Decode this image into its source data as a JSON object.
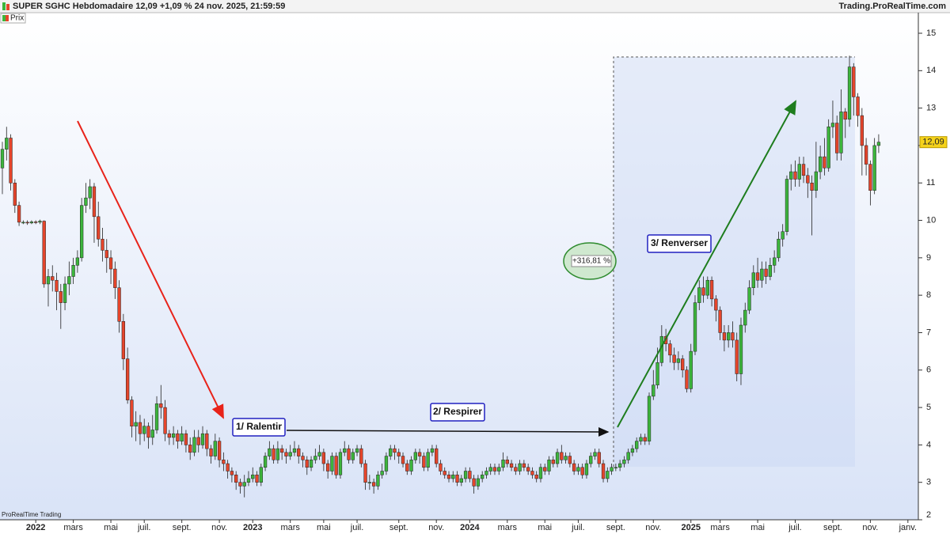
{
  "chart_data": {
    "type": "candlestick",
    "title": "SUPER SGHC Hebdomadaire 12,09 +1,09 % 24 nov. 2025, 21:59:59",
    "source": "Trading.ProRealTime.com",
    "footer": "ProRealTime Trading",
    "annotations": [
      "1/ Ralentir",
      "2/ Respirer",
      "3/ Renverser",
      "+316,81 %"
    ],
    "categories": [
      null,
      null,
      null,
      null,
      null,
      null,
      null,
      null,
      "2022",
      null,
      null,
      null,
      null,
      null,
      null,
      null,
      null,
      "mars",
      null,
      null,
      null,
      null,
      null,
      null,
      null,
      null,
      "mai",
      null,
      null,
      null,
      null,
      null,
      null,
      null,
      "juil.",
      null,
      null,
      null,
      null,
      null,
      null,
      null,
      null,
      "sept.",
      null,
      null,
      null,
      null,
      null,
      null,
      null,
      null,
      "nov.",
      null,
      null,
      null,
      null,
      null,
      null,
      null,
      "2023",
      null,
      null,
      null,
      null,
      null,
      null,
      null,
      null,
      "mars",
      null,
      null,
      null,
      null,
      null,
      null,
      null,
      "mai",
      null,
      null,
      null,
      null,
      null,
      null,
      null,
      "juil.",
      null,
      null,
      null,
      null,
      null,
      null,
      null,
      null,
      null,
      "sept.",
      null,
      null,
      null,
      null,
      null,
      null,
      null,
      null,
      "nov.",
      null,
      null,
      null,
      null,
      null,
      null,
      null,
      "2024",
      null,
      null,
      null,
      null,
      null,
      null,
      null,
      null,
      "mars",
      null,
      null,
      null,
      null,
      null,
      null,
      null,
      null,
      "mai",
      null,
      null,
      null,
      null,
      null,
      null,
      null,
      "juil.",
      null,
      null,
      null,
      null,
      null,
      null,
      null,
      null,
      "sept.",
      null,
      null,
      null,
      null,
      null,
      null,
      null,
      null,
      "nov.",
      null,
      null,
      null,
      null,
      null,
      null,
      null,
      null,
      "2025",
      null,
      null,
      null,
      null,
      null,
      null,
      "mars",
      null,
      null,
      null,
      null,
      null,
      null,
      null,
      null,
      "mai",
      null,
      null,
      null,
      null,
      null,
      null,
      null,
      null,
      "juil.",
      null,
      null,
      null,
      null,
      null,
      null,
      null,
      null,
      "sept.",
      null,
      null,
      null,
      null,
      null,
      null,
      null,
      null,
      "nov.",
      null,
      null,
      null,
      null,
      null,
      null,
      null,
      null,
      "janv.",
      null,
      null
    ],
    "series": [
      {
        "name": "Prix",
        "up_color": "#3cb53c",
        "down_color": "#e5452b",
        "open": [
          11.4,
          11.9,
          12.2,
          11.0,
          10.4,
          9.95,
          9.95,
          9.93,
          9.96,
          9.95,
          9.98,
          8.3,
          8.5,
          8.4,
          8.1,
          7.8,
          8.3,
          8.5,
          8.8,
          9.0,
          10.4,
          10.6,
          10.9,
          10.1,
          9.5,
          9.2,
          9.0,
          8.7,
          8.2,
          7.3,
          6.3,
          5.2,
          4.5,
          4.6,
          4.3,
          4.5,
          4.2,
          4.4,
          5.1,
          5.0,
          4.3,
          4.2,
          4.3,
          4.1,
          4.3,
          4.0,
          3.8,
          4.2,
          4.0,
          4.3,
          3.9,
          3.7,
          4.1,
          3.6,
          3.5,
          3.3,
          3.2,
          3.0,
          2.9,
          3.0,
          3.1,
          3.2,
          3.0,
          3.4,
          3.7,
          3.9,
          3.6,
          3.9,
          3.8,
          3.7,
          3.8,
          3.9,
          3.7,
          3.6,
          3.4,
          3.6,
          3.7,
          3.8,
          3.5,
          3.3,
          3.7,
          3.2,
          3.8,
          3.9,
          3.6,
          3.8,
          3.9,
          3.5,
          3.0,
          3.0,
          2.9,
          3.2,
          3.3,
          3.7,
          3.9,
          3.8,
          3.7,
          3.5,
          3.3,
          3.6,
          3.8,
          3.7,
          3.4,
          3.8,
          3.9,
          3.5,
          3.3,
          3.2,
          3.1,
          3.2,
          3.0,
          3.1,
          3.3,
          3.1,
          2.9,
          3.1,
          3.2,
          3.3,
          3.4,
          3.3,
          3.4,
          3.6,
          3.5,
          3.4,
          3.3,
          3.5,
          3.4,
          3.3,
          3.2,
          3.1,
          3.4,
          3.3,
          3.6,
          3.5,
          3.8,
          3.6,
          3.7,
          3.5,
          3.3,
          3.4,
          3.2,
          3.5,
          3.7,
          3.8,
          3.5,
          3.1,
          3.3,
          3.4,
          3.4,
          3.5,
          3.6,
          3.8,
          3.9,
          4.1,
          4.2,
          4.1,
          5.3,
          5.6,
          6.2,
          6.9,
          6.7,
          6.4,
          6.2,
          6.3,
          6.0,
          5.5,
          6.5,
          7.8,
          8.2,
          8.0,
          8.4,
          7.9,
          7.6,
          7.0,
          6.8,
          7.0,
          6.8,
          5.9,
          7.2,
          7.6,
          8.2,
          8.6,
          8.4,
          8.7,
          8.5,
          8.8,
          9.0,
          9.5,
          9.7,
          11.1,
          11.3,
          11.1,
          11.5,
          11.2,
          11.0,
          10.8,
          11.3,
          11.7,
          11.4,
          12.5,
          12.6,
          11.8,
          12.9,
          12.7,
          14.1,
          13.3,
          12.8,
          12.0,
          11.5,
          10.8,
          12.0,
          null,
          null,
          null,
          null,
          null,
          null,
          null,
          null,
          null
        ],
        "high": [
          12.1,
          12.5,
          12.3,
          11.1,
          10.5,
          10.0,
          10.0,
          10.0,
          10.0,
          10.02,
          10.0,
          8.7,
          8.8,
          8.6,
          8.3,
          8.5,
          8.9,
          9.0,
          9.2,
          10.6,
          11.0,
          11.1,
          11.0,
          10.5,
          9.8,
          9.5,
          9.2,
          8.9,
          8.4,
          7.5,
          6.6,
          5.3,
          4.9,
          4.8,
          4.7,
          4.6,
          4.8,
          5.3,
          5.6,
          5.2,
          4.4,
          4.5,
          4.4,
          4.5,
          4.4,
          4.2,
          4.4,
          4.4,
          4.5,
          4.4,
          4.0,
          4.3,
          4.2,
          3.8,
          3.6,
          3.4,
          3.3,
          3.1,
          3.2,
          3.3,
          3.4,
          3.3,
          3.5,
          3.8,
          4.1,
          4.0,
          4.1,
          4.0,
          3.9,
          4.0,
          4.1,
          4.0,
          3.8,
          3.7,
          3.7,
          3.9,
          4.0,
          3.9,
          3.6,
          3.8,
          3.8,
          3.9,
          4.1,
          4.0,
          3.9,
          4.0,
          4.0,
          3.6,
          3.2,
          3.1,
          3.3,
          3.5,
          3.8,
          4.0,
          4.0,
          3.9,
          3.8,
          3.6,
          3.7,
          3.9,
          3.9,
          3.8,
          3.9,
          4.0,
          4.0,
          3.6,
          3.4,
          3.3,
          3.3,
          3.3,
          3.2,
          3.4,
          3.4,
          3.2,
          3.2,
          3.3,
          3.4,
          3.5,
          3.5,
          3.5,
          3.8,
          3.7,
          3.6,
          3.5,
          3.6,
          3.6,
          3.5,
          3.4,
          3.3,
          3.5,
          3.5,
          3.7,
          3.7,
          3.9,
          4.0,
          3.8,
          3.8,
          3.6,
          3.5,
          3.5,
          3.6,
          3.8,
          3.9,
          3.9,
          3.6,
          3.4,
          3.5,
          3.5,
          3.6,
          3.7,
          3.9,
          4.0,
          4.2,
          4.3,
          4.3,
          5.4,
          6.0,
          6.6,
          7.2,
          7.1,
          6.8,
          6.6,
          6.5,
          6.4,
          6.1,
          6.7,
          8.0,
          8.4,
          8.5,
          8.5,
          8.5,
          8.0,
          7.7,
          7.2,
          7.2,
          7.3,
          7.0,
          7.4,
          7.8,
          8.4,
          8.8,
          9.0,
          8.9,
          8.9,
          9.0,
          9.2,
          9.7,
          9.9,
          11.2,
          11.5,
          11.6,
          11.7,
          11.7,
          11.4,
          11.2,
          12.1,
          12.0,
          12.2,
          12.7,
          13.2,
          12.8,
          13.5,
          13.0,
          14.4,
          14.2,
          13.4,
          13.0,
          12.2,
          11.6,
          12.2,
          12.3,
          null,
          null,
          null,
          null,
          null,
          null,
          null,
          null,
          null
        ],
        "low": [
          10.7,
          11.6,
          10.8,
          10.2,
          9.85,
          9.9,
          9.88,
          9.9,
          9.9,
          9.9,
          8.2,
          7.7,
          8.1,
          7.6,
          7.1,
          7.6,
          8.0,
          8.3,
          8.6,
          8.9,
          10.2,
          10.3,
          9.4,
          9.3,
          8.9,
          8.6,
          8.3,
          7.9,
          7.0,
          6.0,
          5.1,
          4.2,
          4.1,
          4.0,
          4.1,
          3.9,
          4.0,
          4.3,
          4.7,
          4.1,
          4.0,
          4.0,
          3.9,
          4.0,
          3.8,
          3.6,
          3.7,
          3.8,
          3.9,
          3.7,
          3.5,
          3.6,
          3.4,
          3.3,
          3.1,
          3.0,
          2.8,
          2.7,
          2.6,
          2.9,
          3.0,
          2.9,
          2.9,
          3.3,
          3.6,
          3.5,
          3.5,
          3.6,
          3.5,
          3.6,
          3.7,
          3.5,
          3.4,
          3.2,
          3.3,
          3.5,
          3.6,
          3.3,
          3.1,
          3.2,
          3.1,
          3.1,
          3.7,
          3.5,
          3.5,
          3.7,
          3.4,
          2.8,
          2.8,
          2.7,
          2.8,
          3.1,
          3.2,
          3.6,
          3.6,
          3.5,
          3.4,
          3.2,
          3.2,
          3.5,
          3.5,
          3.3,
          3.3,
          3.7,
          3.4,
          3.2,
          3.1,
          3.0,
          3.0,
          2.9,
          2.9,
          3.0,
          3.0,
          2.7,
          2.8,
          3.0,
          3.1,
          3.2,
          3.2,
          3.2,
          3.3,
          3.4,
          3.3,
          3.2,
          3.2,
          3.3,
          3.2,
          3.1,
          3.0,
          3.0,
          3.2,
          3.2,
          3.4,
          3.4,
          3.5,
          3.5,
          3.4,
          3.2,
          3.2,
          3.1,
          3.1,
          3.4,
          3.6,
          3.4,
          3.0,
          3.0,
          3.2,
          3.3,
          3.3,
          3.4,
          3.5,
          3.7,
          3.8,
          4.0,
          4.0,
          4.0,
          5.2,
          5.5,
          6.1,
          6.5,
          6.2,
          6.0,
          6.0,
          5.8,
          5.4,
          5.4,
          6.4,
          7.6,
          7.8,
          7.9,
          7.7,
          7.3,
          6.8,
          6.5,
          6.6,
          6.6,
          5.7,
          5.6,
          7.0,
          7.5,
          8.0,
          8.2,
          8.2,
          8.3,
          8.4,
          8.6,
          8.9,
          9.3,
          9.6,
          10.8,
          10.9,
          10.9,
          11.0,
          10.6,
          9.6,
          10.6,
          11.1,
          11.2,
          11.3,
          12.2,
          11.6,
          11.6,
          12.2,
          12.5,
          12.8,
          12.5,
          11.2,
          11.2,
          10.4,
          10.7,
          11.8,
          null,
          null,
          null,
          null,
          null,
          null,
          null,
          null,
          null
        ],
        "close": [
          11.9,
          12.2,
          11.0,
          10.4,
          9.95,
          9.95,
          9.93,
          9.96,
          9.95,
          9.98,
          8.3,
          8.5,
          8.4,
          8.1,
          7.8,
          8.3,
          8.5,
          8.8,
          9.0,
          10.4,
          10.6,
          10.9,
          10.1,
          9.5,
          9.2,
          9.0,
          8.7,
          8.2,
          7.3,
          6.3,
          5.2,
          4.5,
          4.6,
          4.3,
          4.5,
          4.2,
          4.4,
          5.1,
          5.0,
          4.3,
          4.2,
          4.3,
          4.1,
          4.3,
          4.0,
          3.8,
          4.2,
          4.0,
          4.3,
          3.9,
          3.7,
          4.1,
          3.6,
          3.5,
          3.3,
          3.2,
          3.0,
          2.9,
          3.0,
          3.1,
          3.2,
          3.0,
          3.4,
          3.7,
          3.9,
          3.6,
          3.9,
          3.8,
          3.7,
          3.8,
          3.9,
          3.7,
          3.6,
          3.4,
          3.6,
          3.7,
          3.8,
          3.5,
          3.3,
          3.7,
          3.2,
          3.8,
          3.9,
          3.6,
          3.8,
          3.9,
          3.5,
          3.0,
          3.0,
          2.9,
          3.2,
          3.3,
          3.7,
          3.9,
          3.8,
          3.7,
          3.5,
          3.3,
          3.6,
          3.8,
          3.7,
          3.4,
          3.8,
          3.9,
          3.5,
          3.3,
          3.2,
          3.1,
          3.2,
          3.0,
          3.1,
          3.3,
          3.1,
          2.9,
          3.1,
          3.2,
          3.3,
          3.4,
          3.3,
          3.4,
          3.6,
          3.5,
          3.4,
          3.3,
          3.5,
          3.4,
          3.3,
          3.2,
          3.1,
          3.4,
          3.3,
          3.6,
          3.5,
          3.8,
          3.6,
          3.7,
          3.5,
          3.3,
          3.4,
          3.2,
          3.5,
          3.7,
          3.8,
          3.5,
          3.1,
          3.3,
          3.4,
          3.4,
          3.5,
          3.6,
          3.8,
          3.9,
          4.1,
          4.2,
          4.1,
          5.3,
          5.6,
          6.2,
          6.9,
          6.7,
          6.4,
          6.2,
          6.3,
          6.0,
          5.5,
          6.5,
          7.8,
          8.2,
          8.0,
          8.4,
          7.9,
          7.6,
          7.0,
          6.8,
          7.0,
          6.8,
          5.9,
          7.2,
          7.6,
          8.2,
          8.6,
          8.4,
          8.7,
          8.5,
          8.8,
          9.0,
          9.5,
          9.7,
          11.1,
          11.3,
          11.1,
          11.5,
          11.2,
          11.0,
          10.8,
          11.3,
          11.7,
          11.4,
          12.5,
          12.6,
          11.8,
          12.9,
          12.7,
          14.1,
          13.3,
          12.8,
          12.0,
          11.5,
          10.8,
          12.0,
          12.09,
          null,
          null,
          null,
          null,
          null,
          null,
          null,
          null,
          null
        ]
      }
    ],
    "price_label": {
      "value": 12.09,
      "label": "12,09"
    },
    "ylim": [
      2,
      15.55
    ],
    "yticks": [
      2,
      3,
      4,
      5,
      6,
      7,
      8,
      9,
      10,
      11,
      12,
      13,
      14,
      15
    ],
    "y_axis_side": "right",
    "grid": false
  }
}
